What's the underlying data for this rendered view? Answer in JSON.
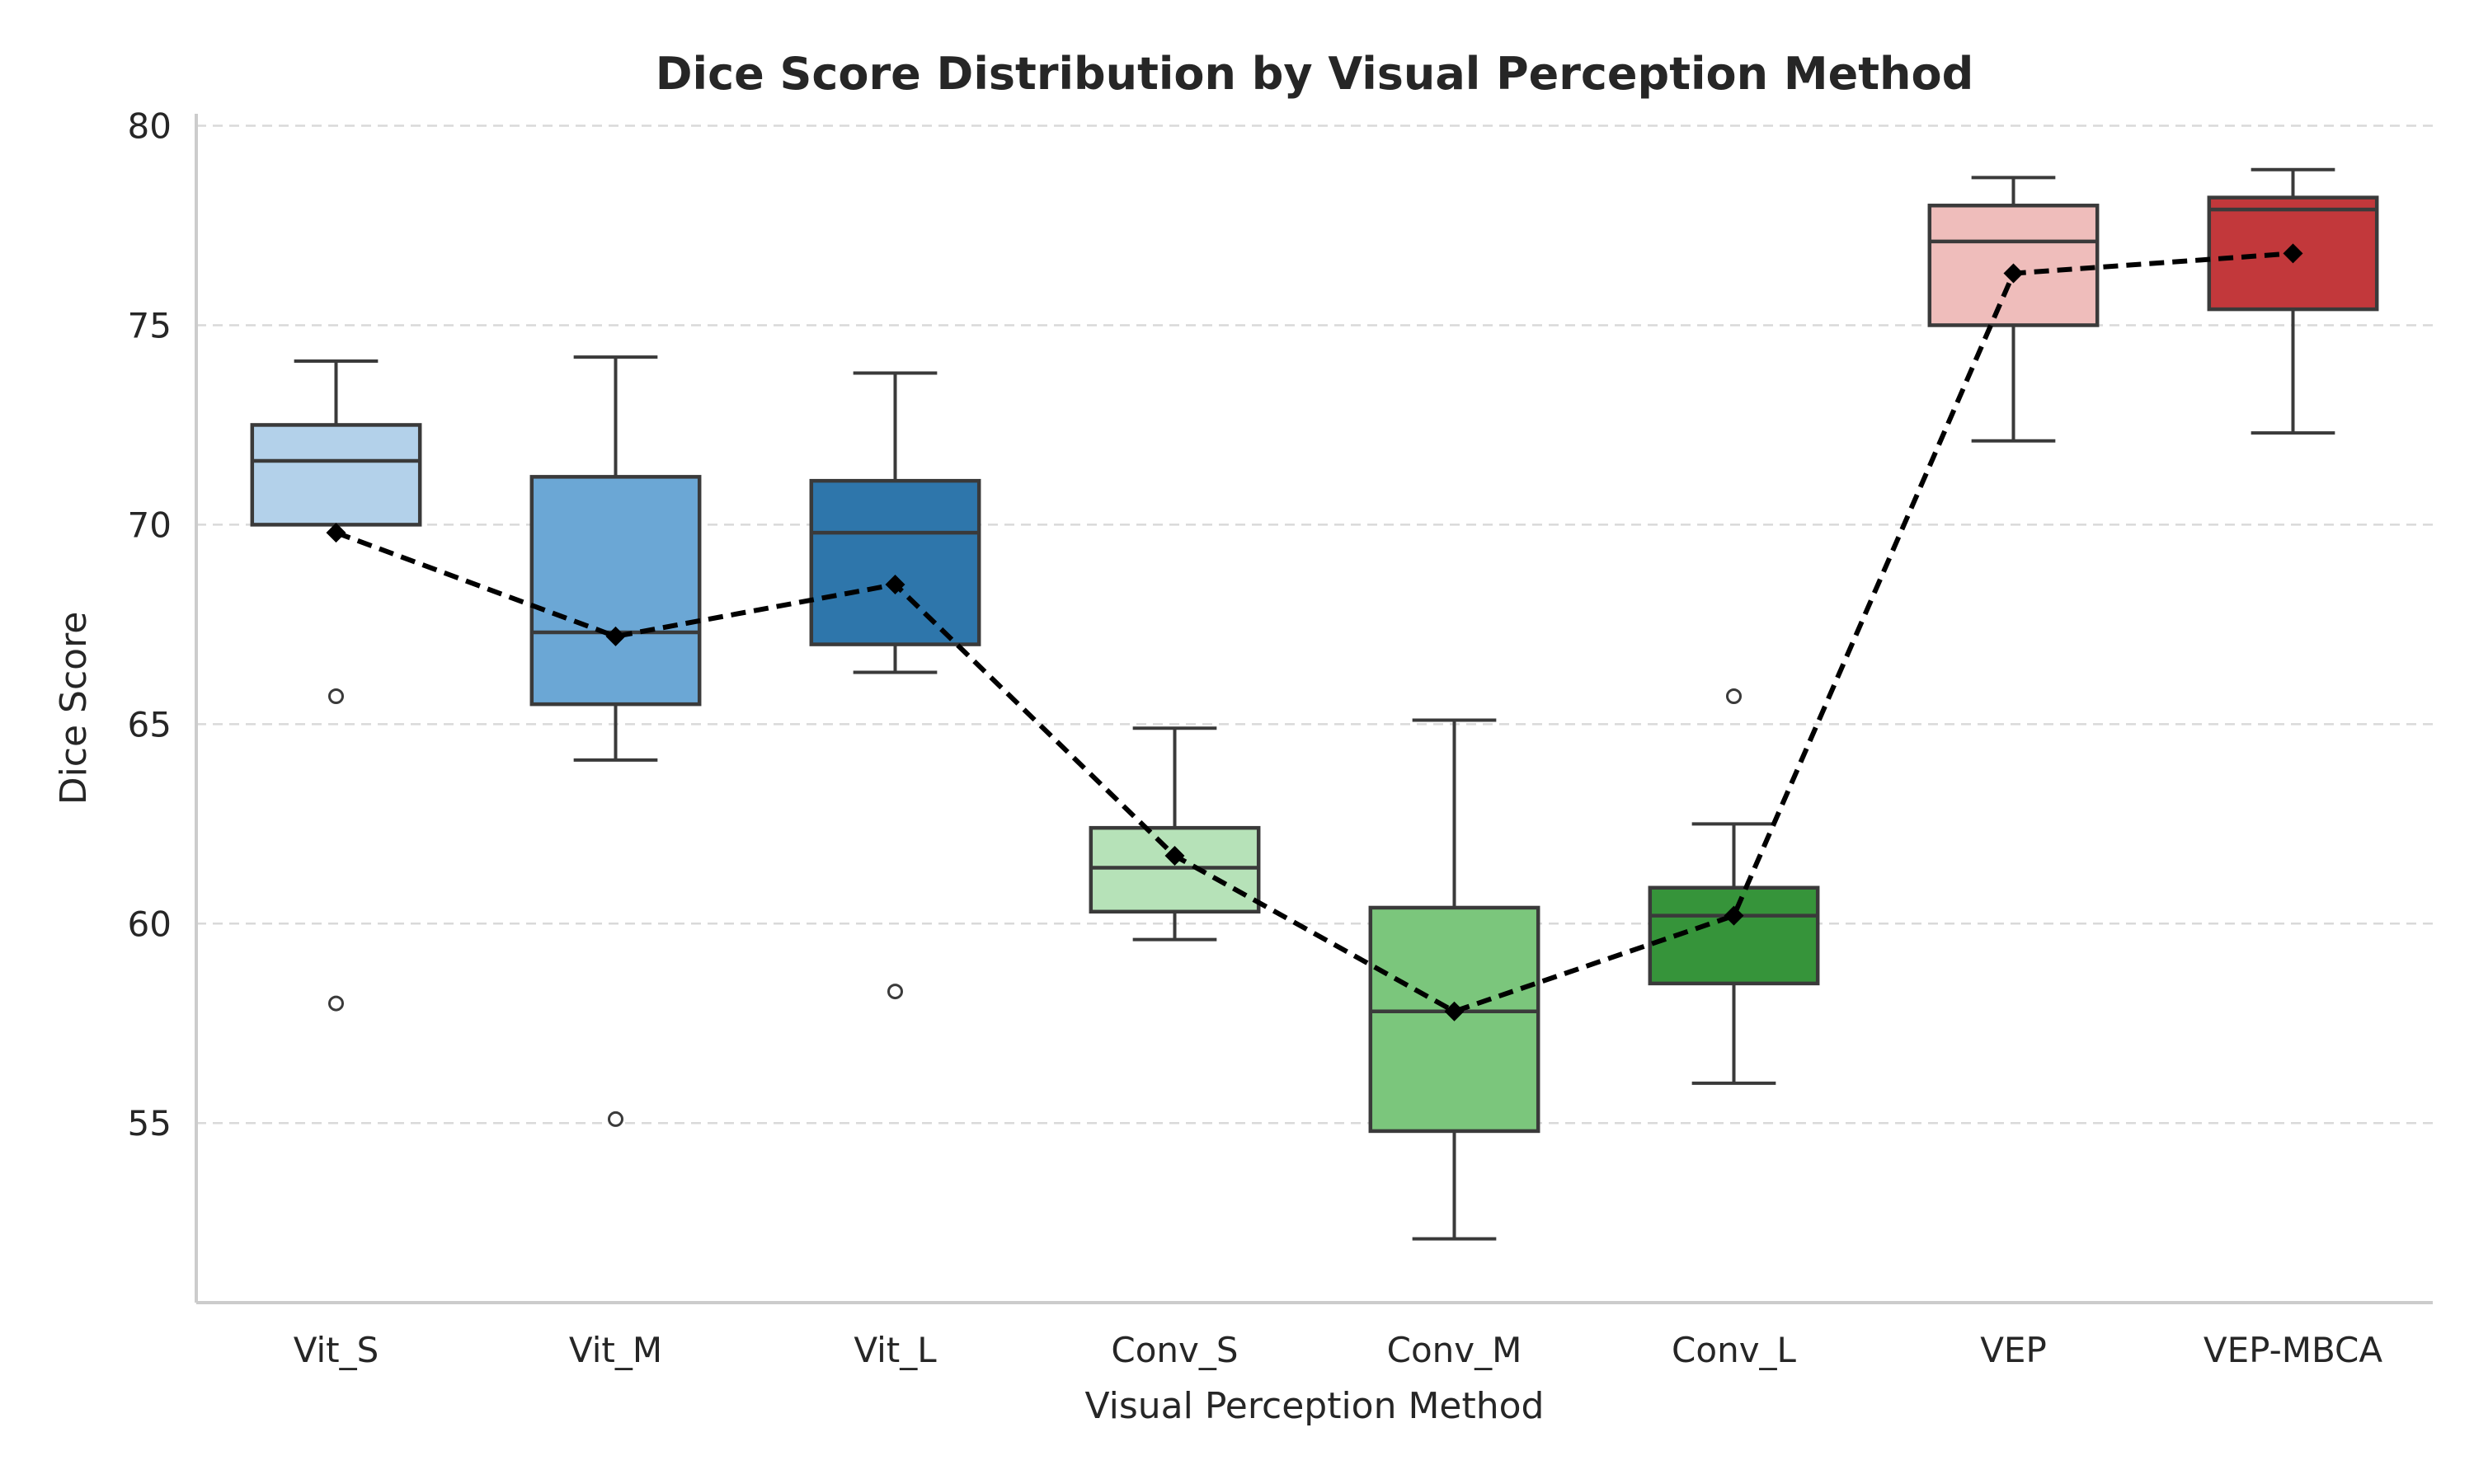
{
  "chart_data": {
    "type": "box",
    "title": "Dice Score Distribution by Visual Perception Method",
    "xlabel": "Visual Perception Method",
    "ylabel": "Dice Score",
    "ylim": [
      50.5,
      80.3
    ],
    "yticks": [
      55,
      60,
      65,
      70,
      75,
      80
    ],
    "grid": "horizontal dashed",
    "categories": [
      "Vit_S",
      "Vit_M",
      "Vit_L",
      "Conv_S",
      "Conv_M",
      "Conv_L",
      "VEP",
      "VEP-MBCA"
    ],
    "colors": [
      "#b3d1ea",
      "#6ba7d5",
      "#2e76ab",
      "#b6e2b8",
      "#7bc67c",
      "#36943a",
      "#efbdbb",
      "#c2383b"
    ],
    "boxes": [
      {
        "whisker_low": 70.0,
        "q1": 70.0,
        "median": 71.6,
        "q3": 72.5,
        "whisker_high": 74.1,
        "outliers": [
          65.7,
          58.0
        ]
      },
      {
        "whisker_low": 64.1,
        "q1": 65.5,
        "median": 67.3,
        "q3": 71.2,
        "whisker_high": 74.2,
        "outliers": [
          55.1
        ]
      },
      {
        "whisker_low": 66.3,
        "q1": 67.0,
        "median": 69.8,
        "q3": 71.1,
        "whisker_high": 73.8,
        "outliers": [
          58.3
        ]
      },
      {
        "whisker_low": 59.6,
        "q1": 60.3,
        "median": 61.4,
        "q3": 62.4,
        "whisker_high": 64.9,
        "outliers": []
      },
      {
        "whisker_low": 52.1,
        "q1": 54.8,
        "median": 57.8,
        "q3": 60.4,
        "whisker_high": 65.1,
        "outliers": []
      },
      {
        "whisker_low": 56.0,
        "q1": 58.5,
        "median": 60.2,
        "q3": 60.9,
        "whisker_high": 62.5,
        "outliers": [
          65.7
        ]
      },
      {
        "whisker_low": 72.1,
        "q1": 75.0,
        "median": 77.1,
        "q3": 78.0,
        "whisker_high": 78.7,
        "outliers": []
      },
      {
        "whisker_low": 72.3,
        "q1": 75.4,
        "median": 77.9,
        "q3": 78.2,
        "whisker_high": 78.9,
        "outliers": []
      }
    ],
    "mean_line": {
      "style": "black dashed with diamond markers",
      "values": [
        69.8,
        67.2,
        68.5,
        61.7,
        57.8,
        60.2,
        76.3,
        76.8
      ]
    }
  }
}
